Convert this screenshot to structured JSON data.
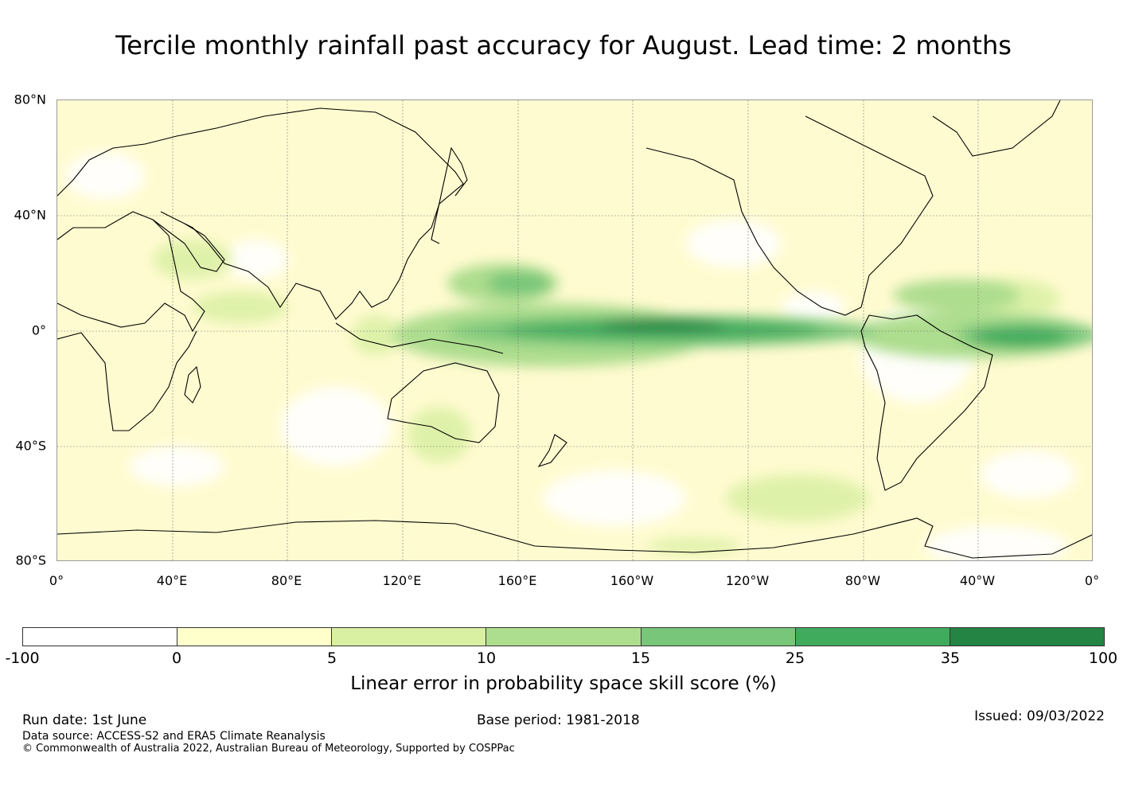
{
  "title": "Tercile monthly rainfall past accuracy for August. Lead time: 2 months",
  "map": {
    "lat_labels": [
      "80°N",
      "40°N",
      "0°",
      "40°S",
      "80°S"
    ],
    "lon_labels": [
      "0°",
      "40°E",
      "80°E",
      "120°E",
      "160°E",
      "160°W",
      "120°W",
      "80°W",
      "40°W",
      "0°"
    ],
    "projection": "equirectangular",
    "longitude_range": [
      0,
      360
    ],
    "latitude_range": [
      -80,
      80
    ],
    "gridlines": true,
    "coastlines": true
  },
  "colorbar": {
    "label": "Linear error in probability space skill score (%)",
    "ticks": [
      "-100",
      "0",
      "5",
      "10",
      "15",
      "25",
      "35",
      "100"
    ],
    "colors": [
      "#ffffff",
      "#ffffcc",
      "#d9f0a3",
      "#addd8e",
      "#78c679",
      "#41ab5d",
      "#238443"
    ]
  },
  "footer": {
    "run_date": "Run date: 1st June",
    "base_period": "Base period: 1981-2018",
    "issued": "Issued: 09/03/2022",
    "data_source": "Data source: ACCESS-S2 and ERA5 Climate Reanalysis",
    "copyright": "© Commonwealth of Australia 2022, Australian Bureau of Meteorology, Supported by COSPPac"
  }
}
